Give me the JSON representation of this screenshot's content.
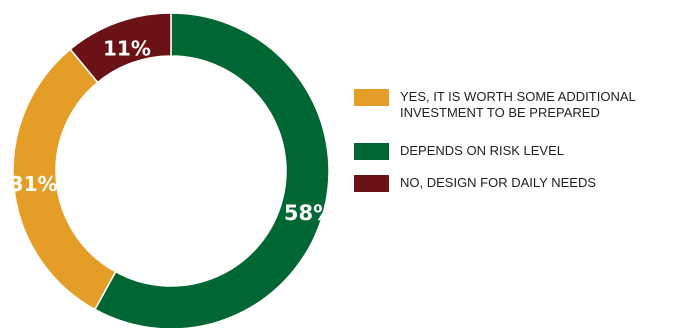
{
  "chart_data": {
    "type": "pie",
    "donut": true,
    "legend_position": "right",
    "slices": [
      {
        "label": "DEPENDS ON RISK LEVEL",
        "value": 58,
        "display": "58%",
        "color": "#006633"
      },
      {
        "label": "YES, IT IS WORTH SOME ADDITIONAL INVESTMENT TO BE PREPARED",
        "value": 31,
        "display": "31%",
        "color": "#E49E27"
      },
      {
        "label": "NO, DESIGN FOR DAILY NEEDS",
        "value": 11,
        "display": "11%",
        "color": "#6B1217"
      }
    ]
  },
  "legend": {
    "items": [
      {
        "label": "YES, IT IS WORTH SOME ADDITIONAL INVESTMENT TO BE PREPARED",
        "color": "#E49E27"
      },
      {
        "label": "DEPENDS ON RISK LEVEL",
        "color": "#006633"
      },
      {
        "label": "NO, DESIGN FOR DAILY NEEDS",
        "color": "#6B1217"
      }
    ]
  }
}
